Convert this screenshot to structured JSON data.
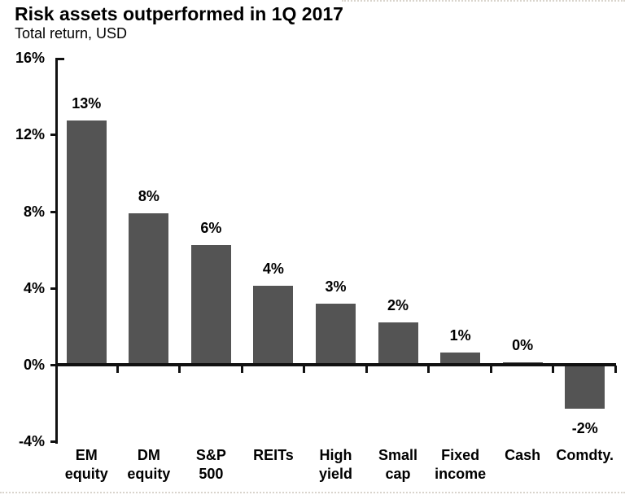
{
  "header": {
    "title": "Risk assets outperformed in 1Q 2017",
    "subtitle": "Total return, USD"
  },
  "chart_data": {
    "type": "bar",
    "title": "Risk assets outperformed in 1Q 2017",
    "subtitle": "Total return, USD",
    "categories": [
      "EM equity",
      "DM equity",
      "S&P 500",
      "REITs",
      "High yield",
      "Small cap",
      "Fixed income",
      "Cash",
      "Comdty."
    ],
    "category_lines": [
      [
        "EM",
        "equity"
      ],
      [
        "DM",
        "equity"
      ],
      [
        "S&P",
        "500"
      ],
      [
        "REITs"
      ],
      [
        "High",
        "yield"
      ],
      [
        "Small",
        "cap"
      ],
      [
        "Fixed",
        "income"
      ],
      [
        "Cash"
      ],
      [
        "Comdty."
      ]
    ],
    "values": [
      13,
      8,
      6,
      4,
      3,
      2,
      1,
      0,
      -2
    ],
    "value_labels": [
      "13%",
      "8%",
      "6%",
      "4%",
      "3%",
      "2%",
      "1%",
      "0%",
      "-2%"
    ],
    "drawn_values": [
      12.75,
      7.9,
      6.25,
      4.1,
      3.2,
      2.2,
      0.65,
      0.12,
      -2.3
    ],
    "xlabel": "",
    "ylabel": "",
    "ylim": [
      -4,
      16
    ],
    "yticks": [
      16,
      12,
      8,
      4,
      0,
      -4
    ],
    "ytick_labels": [
      "16%",
      "12%",
      "8%",
      "4%",
      "0%",
      "-4%"
    ],
    "grid": false,
    "legend": "none",
    "colors": {
      "bar": "#545454",
      "axis": "#111111",
      "text": "#000000",
      "background": "#ffffff"
    }
  }
}
